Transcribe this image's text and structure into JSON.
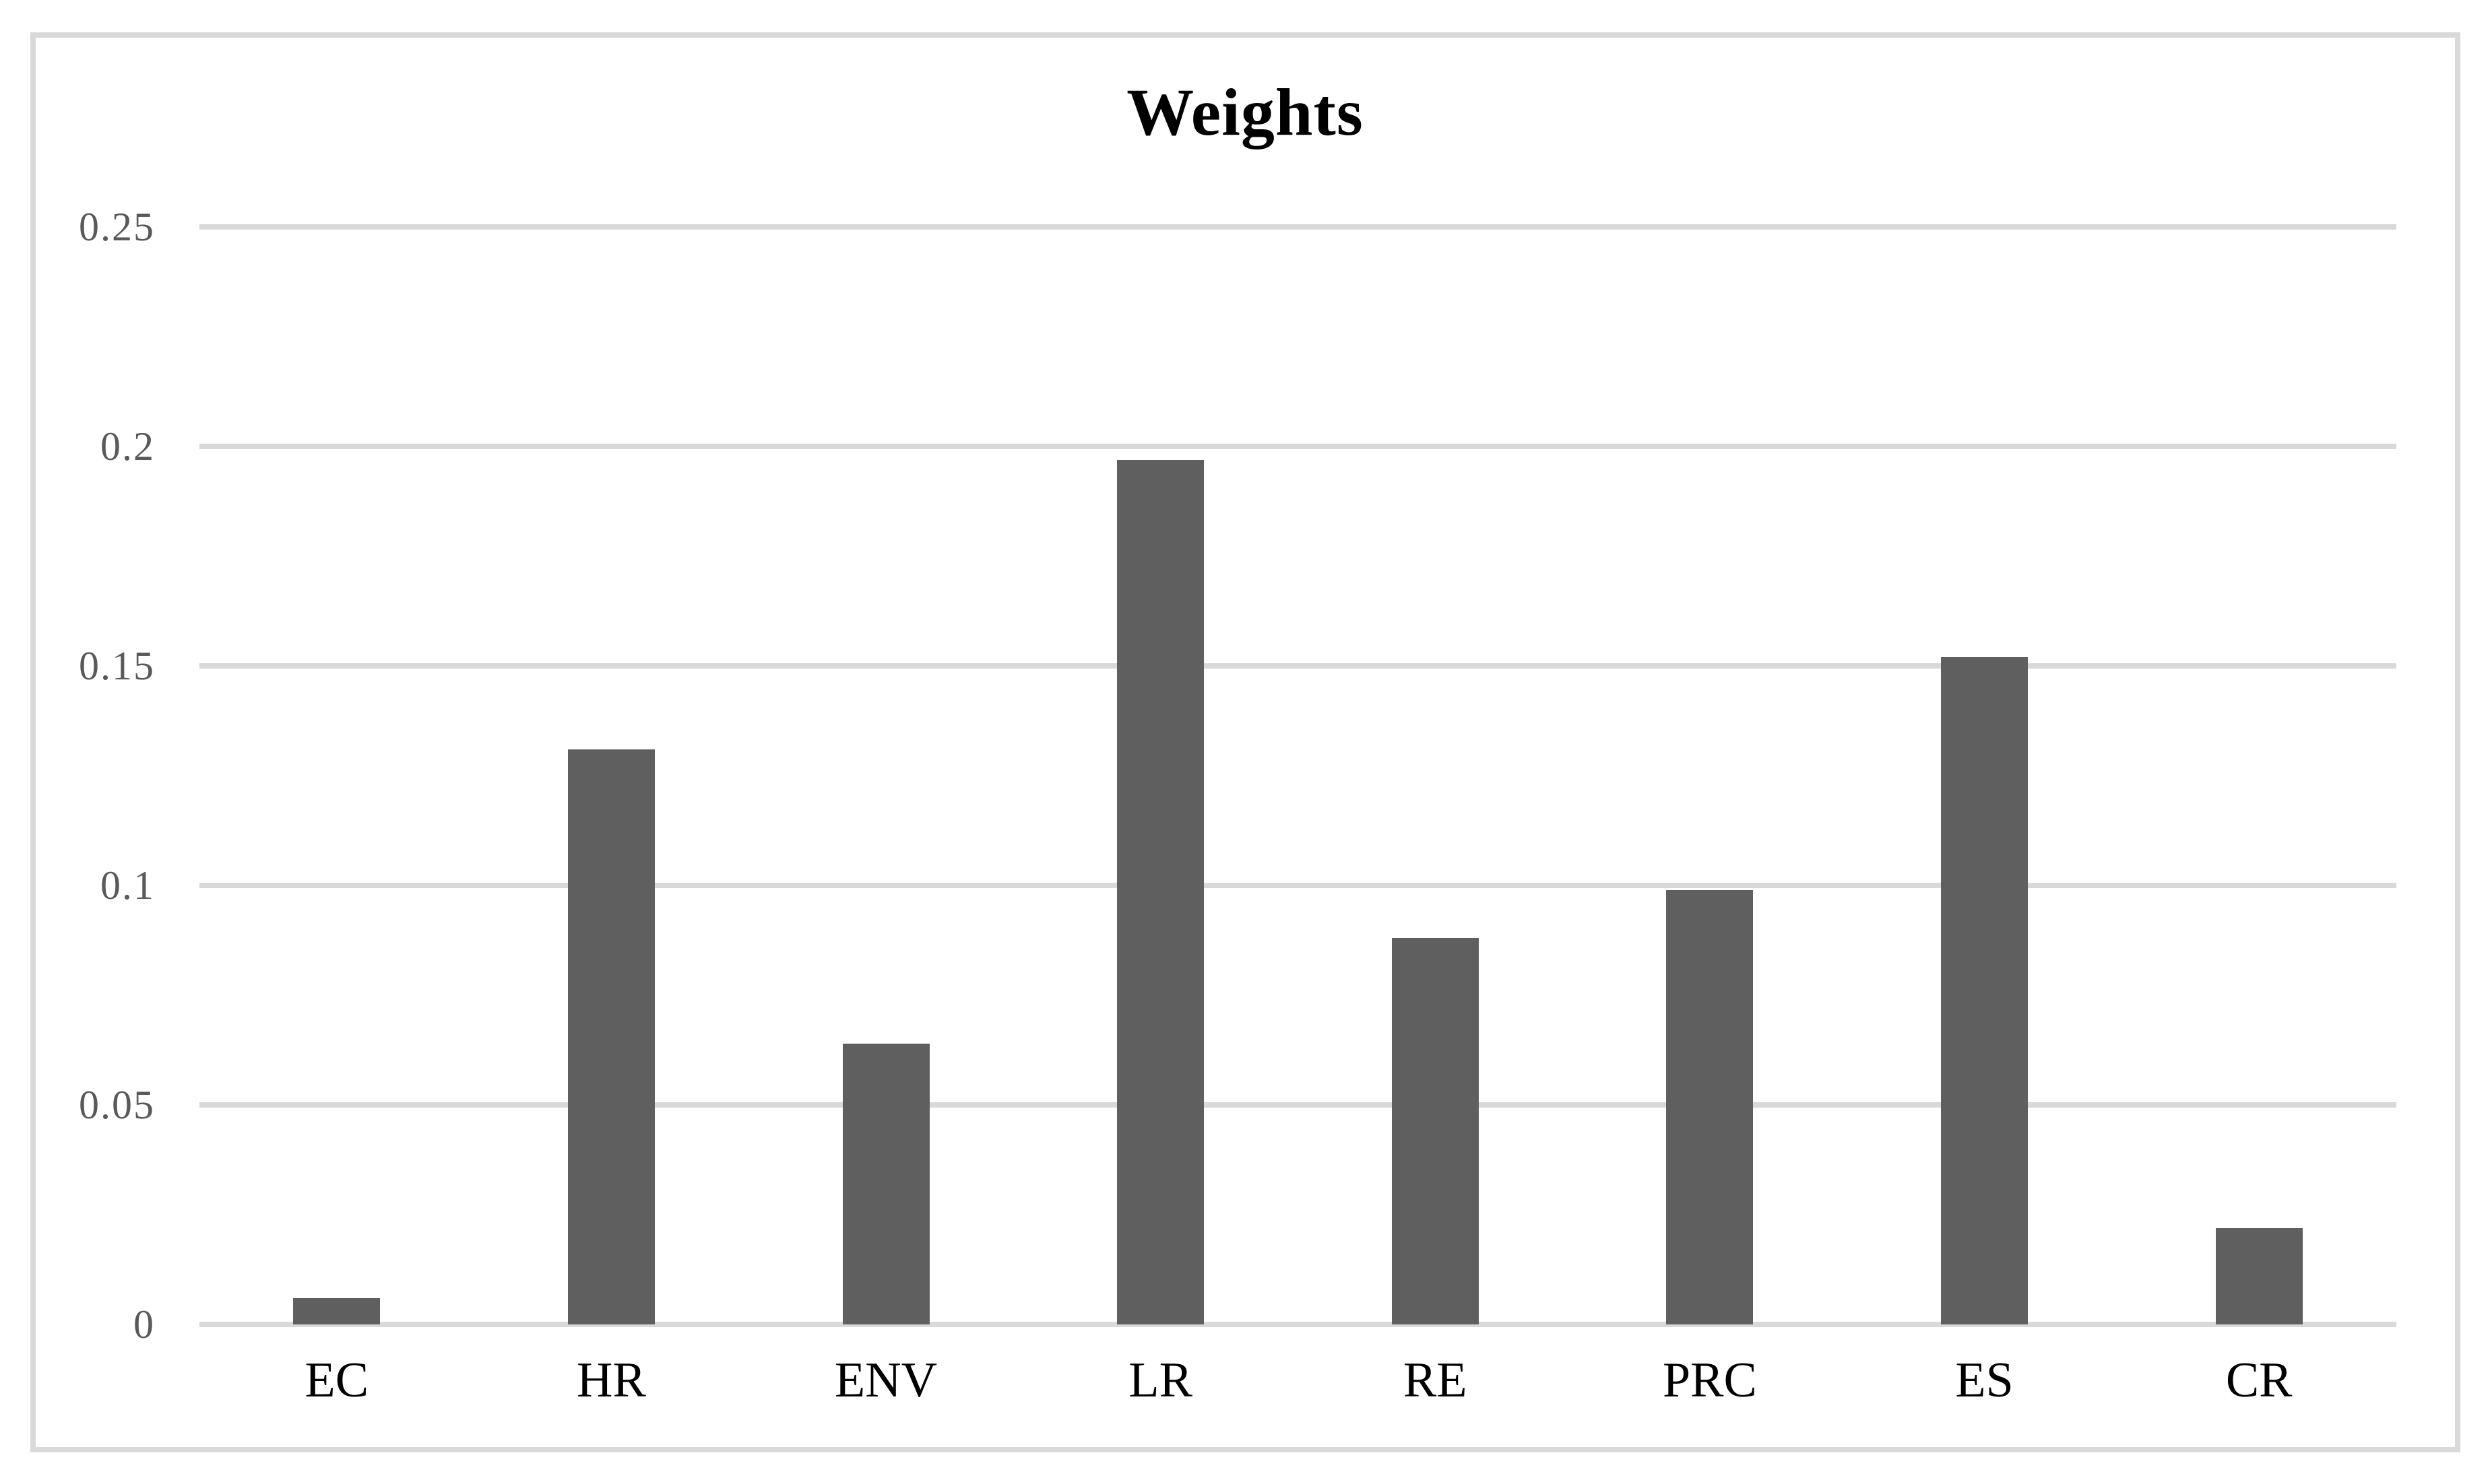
{
  "chart_data": {
    "type": "bar",
    "title": "Weights",
    "categories": [
      "EC",
      "HR",
      "ENV",
      "LR",
      "RE",
      "PRC",
      "ES",
      "CR"
    ],
    "values": [
      0.006,
      0.131,
      0.064,
      0.197,
      0.088,
      0.099,
      0.152,
      0.022
    ],
    "y_ticks": [
      "0.25",
      "0.2",
      "0.15",
      "0.1",
      "0.05",
      "0"
    ],
    "ylim": [
      0,
      0.25
    ],
    "xlabel": "",
    "ylabel": "",
    "grid": true,
    "legend_position": "none",
    "colors": {
      "bar": "#5f5f5f",
      "gridline": "#d9d9d9",
      "y_tick_label": "#595959",
      "category_label": "#000000",
      "title": "#000000",
      "frame_border": "#d9d9d9",
      "background": "#ffffff"
    }
  }
}
